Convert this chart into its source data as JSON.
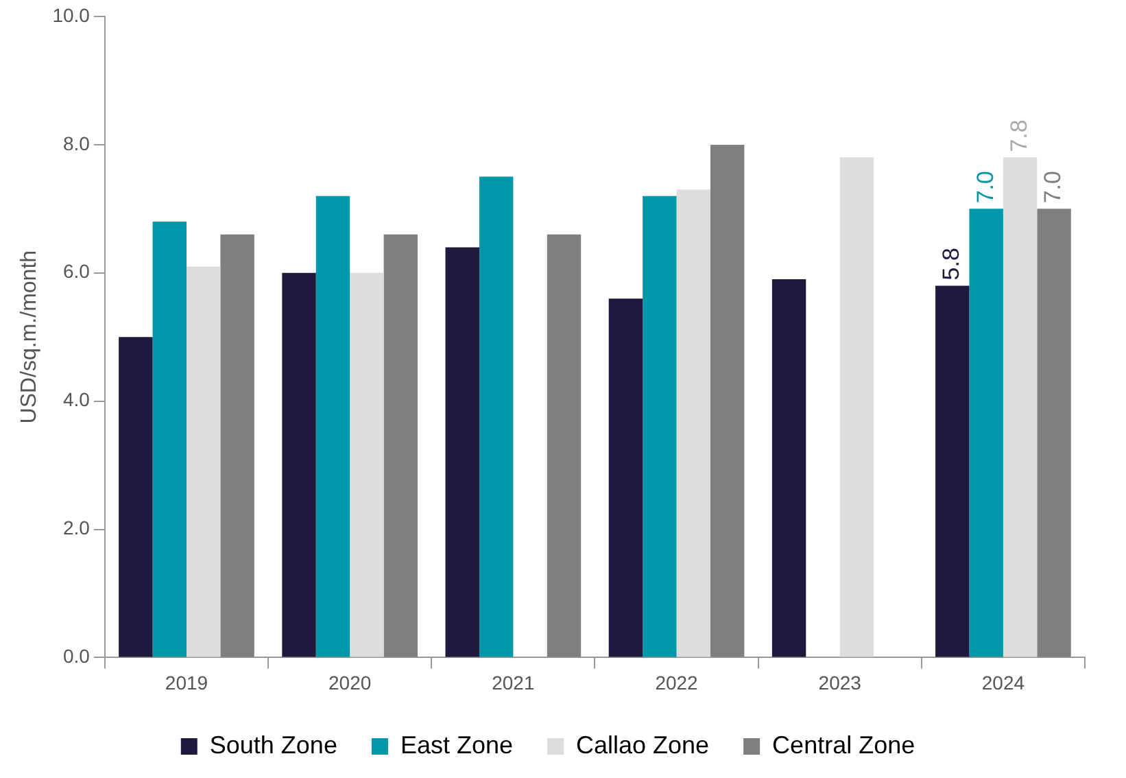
{
  "chart_data": {
    "type": "bar",
    "ylabel": "USD/sq.m./month",
    "categories": [
      "2019",
      "2020",
      "2021",
      "2022",
      "2023",
      "2024"
    ],
    "series": [
      {
        "name": "South Zone",
        "color": "#1f1a3d",
        "values": [
          5.0,
          6.0,
          6.4,
          5.6,
          5.9,
          5.8
        ],
        "value_labels": [
          null,
          null,
          null,
          null,
          null,
          "5.8"
        ]
      },
      {
        "name": "East Zone",
        "color": "#0097a9",
        "values": [
          6.8,
          7.2,
          7.5,
          7.2,
          null,
          7.0
        ],
        "value_labels": [
          null,
          null,
          null,
          null,
          null,
          "7.0"
        ]
      },
      {
        "name": "Callao Zone",
        "color": "#dcdddd",
        "values": [
          6.1,
          6.0,
          null,
          7.3,
          7.8,
          7.8
        ],
        "value_labels": [
          null,
          null,
          null,
          null,
          null,
          "7.8"
        ]
      },
      {
        "name": "Central Zone",
        "color": "#7f7f7f",
        "values": [
          6.6,
          6.6,
          6.6,
          8.0,
          null,
          7.0
        ],
        "value_labels": [
          null,
          null,
          null,
          null,
          null,
          "7.0"
        ]
      }
    ],
    "ylim": [
      0,
      10
    ],
    "yticks": [
      {
        "value": 0,
        "label": "0.0"
      },
      {
        "value": 2,
        "label": "2.0"
      },
      {
        "value": 4,
        "label": "4.0"
      },
      {
        "value": 6,
        "label": "6.0"
      },
      {
        "value": 8,
        "label": "8.0"
      },
      {
        "value": 10,
        "label": "10.0"
      }
    ],
    "grid": false,
    "legend": "bottom"
  }
}
